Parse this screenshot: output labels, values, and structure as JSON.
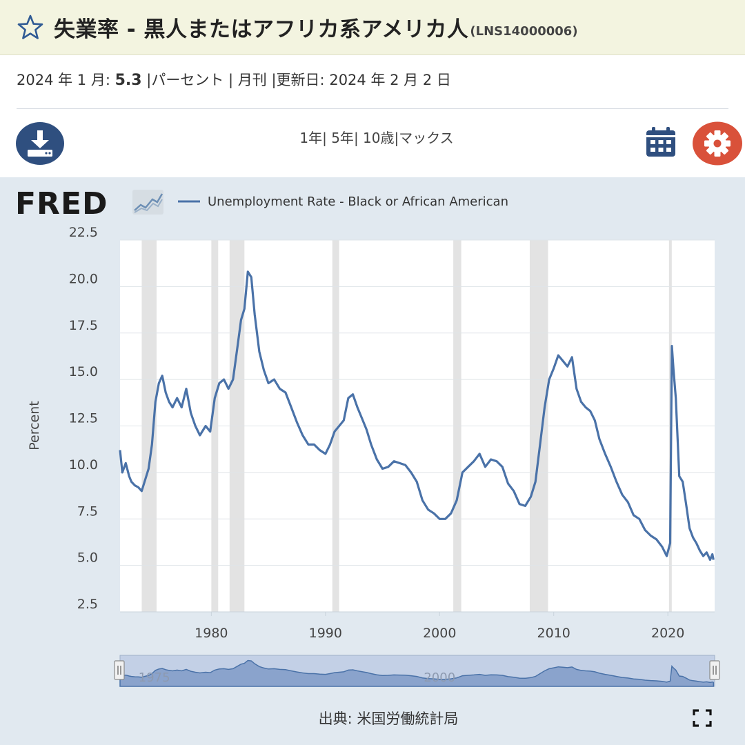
{
  "header": {
    "title": "失業率 - 黒人またはアフリカ系アメリカ人",
    "series_id": "(LNS14000006)",
    "star_icon": "star-outline-icon"
  },
  "meta": {
    "date_label": "2024 年 1 月:",
    "value": "5.3",
    "unit": "|パーセント",
    "frequency": "| 月刊",
    "updated_label": "|更新日:",
    "updated_date": "2024 年 2 月 2 日"
  },
  "controls": {
    "download_icon": "download-icon",
    "range_1y": "1年",
    "range_5y": "| 5年",
    "range_10y": "| 10歳",
    "range_max": "|マックス",
    "calendar_icon": "calendar-icon",
    "settings_icon": "gear-icon"
  },
  "brand": {
    "logo_text": "FRED"
  },
  "footer": {
    "source": "出典: 米国労働統計局",
    "fullscreen_icon": "fullscreen-icon"
  },
  "colors": {
    "series": "#4a72a8",
    "panel": "#e1e9f0",
    "recession": "#e3e3e3",
    "accent_blue": "#2f4f7f",
    "settings_red": "#d9513a"
  },
  "chart_data": {
    "type": "line",
    "title": "",
    "legend": "Unemployment Rate - Black or African American",
    "ylabel": "Percent",
    "ylim": [
      2.5,
      22.5
    ],
    "yticks": [
      "2.5",
      "5.0",
      "7.5",
      "10.0",
      "12.5",
      "15.0",
      "17.5",
      "20.0",
      "22.5"
    ],
    "xlim": [
      1972.0,
      2024.1
    ],
    "xticks": [
      "1980",
      "1990",
      "2000",
      "2010",
      "2020"
    ],
    "navigator_labels": [
      "1975",
      "2000"
    ],
    "recessions": [
      [
        1973.9,
        1975.2
      ],
      [
        1980.0,
        1980.6
      ],
      [
        1981.6,
        1982.9
      ],
      [
        1990.6,
        1991.2
      ],
      [
        2001.2,
        2001.9
      ],
      [
        2007.9,
        2009.5
      ],
      [
        2020.1,
        2020.3
      ]
    ],
    "series": [
      {
        "name": "Unemployment Rate - Black or African American",
        "x": [
          1972.0,
          1972.2,
          1972.5,
          1972.8,
          1973.0,
          1973.3,
          1973.6,
          1973.9,
          1974.2,
          1974.5,
          1974.8,
          1975.1,
          1975.4,
          1975.7,
          1976.0,
          1976.3,
          1976.6,
          1977.0,
          1977.4,
          1977.8,
          1978.2,
          1978.6,
          1979.0,
          1979.5,
          1979.9,
          1980.3,
          1980.7,
          1981.1,
          1981.5,
          1981.9,
          1982.3,
          1982.6,
          1982.9,
          1983.2,
          1983.5,
          1983.8,
          1984.2,
          1984.6,
          1985.0,
          1985.5,
          1986.0,
          1986.5,
          1987.0,
          1987.5,
          1988.0,
          1988.5,
          1989.0,
          1989.5,
          1990.0,
          1990.4,
          1990.8,
          1991.2,
          1991.6,
          1992.0,
          1992.4,
          1992.8,
          1993.2,
          1993.6,
          1994.0,
          1994.5,
          1995.0,
          1995.5,
          1996.0,
          1996.5,
          1997.0,
          1997.5,
          1998.0,
          1998.5,
          1999.0,
          1999.5,
          2000.0,
          2000.5,
          2001.0,
          2001.5,
          2002.0,
          2002.5,
          2003.0,
          2003.5,
          2004.0,
          2004.5,
          2005.0,
          2005.5,
          2006.0,
          2006.5,
          2007.0,
          2007.5,
          2008.0,
          2008.4,
          2008.8,
          2009.2,
          2009.6,
          2010.0,
          2010.4,
          2010.8,
          2011.2,
          2011.6,
          2012.0,
          2012.4,
          2012.8,
          2013.2,
          2013.6,
          2014.0,
          2014.5,
          2015.0,
          2015.5,
          2016.0,
          2016.5,
          2017.0,
          2017.5,
          2018.0,
          2018.5,
          2019.0,
          2019.5,
          2019.9,
          2020.2,
          2020.35,
          2020.5,
          2020.7,
          2021.0,
          2021.3,
          2021.6,
          2021.9,
          2022.2,
          2022.5,
          2022.8,
          2023.1,
          2023.4,
          2023.7,
          2023.9,
          2024.0
        ],
        "values": [
          11.2,
          10.0,
          10.5,
          9.8,
          9.5,
          9.3,
          9.2,
          9.0,
          9.6,
          10.2,
          11.5,
          13.8,
          14.8,
          15.2,
          14.3,
          13.8,
          13.5,
          14.0,
          13.5,
          14.5,
          13.2,
          12.5,
          12.0,
          12.5,
          12.2,
          14.0,
          14.8,
          15.0,
          14.5,
          15.0,
          16.8,
          18.2,
          18.8,
          20.8,
          20.5,
          18.5,
          16.5,
          15.5,
          14.8,
          15.0,
          14.5,
          14.3,
          13.5,
          12.7,
          12.0,
          11.5,
          11.5,
          11.2,
          11.0,
          11.5,
          12.2,
          12.5,
          12.8,
          14.0,
          14.2,
          13.5,
          12.9,
          12.3,
          11.5,
          10.7,
          10.2,
          10.3,
          10.6,
          10.5,
          10.4,
          10.0,
          9.5,
          8.5,
          8.0,
          7.8,
          7.5,
          7.5,
          7.8,
          8.5,
          10.0,
          10.3,
          10.6,
          11.0,
          10.3,
          10.7,
          10.6,
          10.3,
          9.4,
          9.0,
          8.3,
          8.2,
          8.7,
          9.5,
          11.5,
          13.5,
          15.0,
          15.6,
          16.3,
          16.0,
          15.7,
          16.2,
          14.5,
          13.8,
          13.5,
          13.3,
          12.8,
          11.8,
          11.0,
          10.3,
          9.5,
          8.8,
          8.4,
          7.7,
          7.5,
          6.9,
          6.6,
          6.4,
          6.0,
          5.5,
          6.2,
          16.8,
          15.5,
          14.0,
          9.8,
          9.5,
          8.3,
          7.0,
          6.5,
          6.2,
          5.8,
          5.5,
          5.7,
          5.3,
          5.6,
          5.3
        ]
      }
    ]
  }
}
